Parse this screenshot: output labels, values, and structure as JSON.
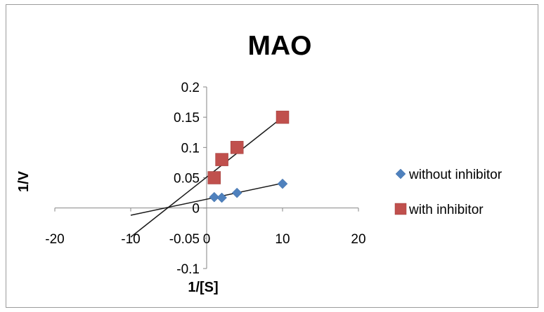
{
  "chart_data": {
    "type": "scatter",
    "title": "MAO",
    "xlabel": "1/[S]",
    "ylabel": "1/V",
    "xlim": [
      -20,
      20
    ],
    "ylim": [
      -0.1,
      0.2
    ],
    "x_ticks": [
      "-20",
      "-10",
      "0",
      "10",
      "20"
    ],
    "y_ticks": [
      "-0.1",
      "-0.05",
      "0",
      "0.05",
      "0.1",
      "0.15",
      "0.2"
    ],
    "grid": false,
    "legend_position": "right",
    "series": [
      {
        "name": "without inhibitor",
        "marker": "diamond",
        "color": "#4f81bd",
        "x": [
          1,
          2,
          4,
          10
        ],
        "y": [
          0.018,
          0.017,
          0.025,
          0.04
        ],
        "trendline": {
          "x": [
            -10,
            10
          ],
          "y": [
            -0.012,
            0.041
          ]
        }
      },
      {
        "name": "with inhibitor",
        "marker": "square",
        "color": "#c0504d",
        "x": [
          1,
          2,
          4,
          10
        ],
        "y": [
          0.05,
          0.08,
          0.1,
          0.15
        ],
        "trendline": {
          "x": [
            -10,
            10
          ],
          "y": [
            -0.048,
            0.15
          ]
        }
      }
    ]
  }
}
